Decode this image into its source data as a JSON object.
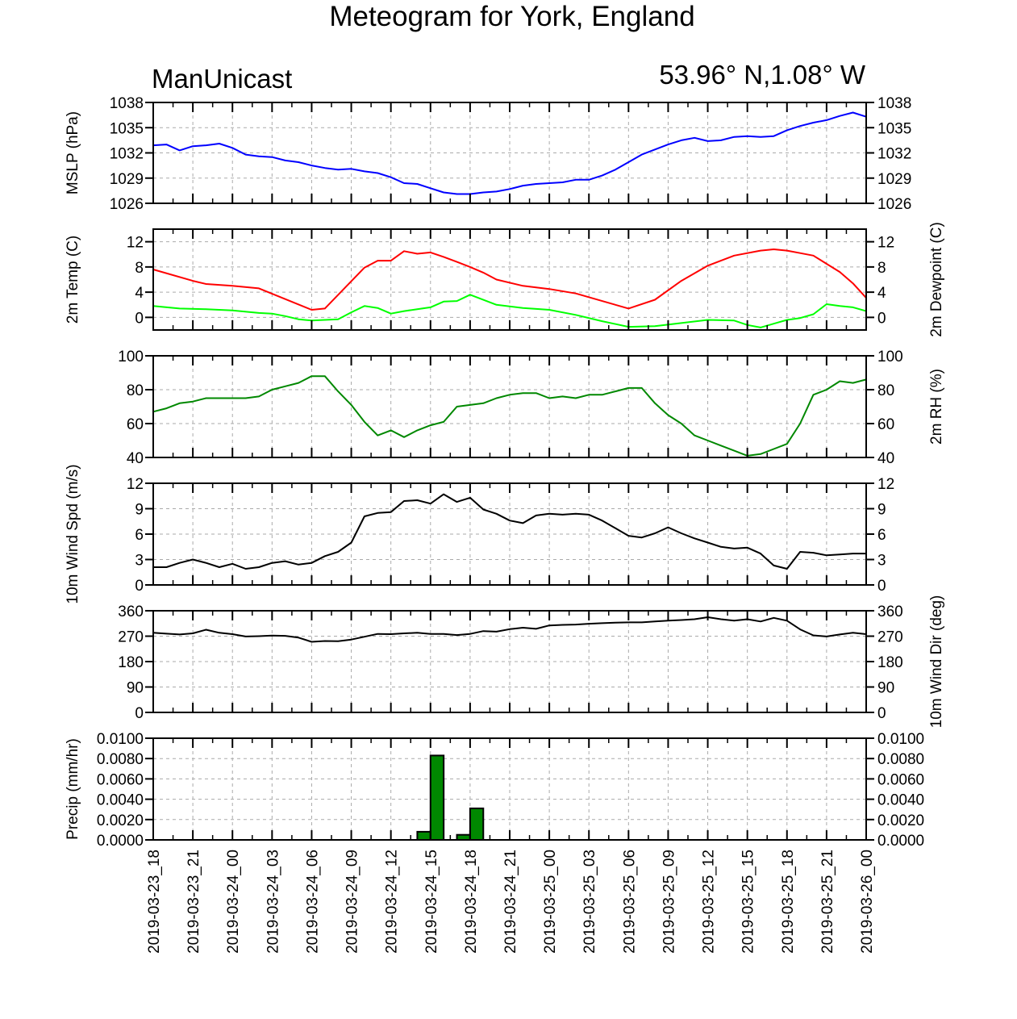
{
  "title": "Meteogram for York, England",
  "left_label": "ManUnicast",
  "right_label": "53.96° N,1.08° W",
  "colors": {
    "mslp": "#0000ff",
    "temp": "#ff0000",
    "dewpoint": "#00ff00",
    "rh": "#008800",
    "wind_spd": "#000000",
    "wind_dir": "#000000",
    "precip_fill": "#008800",
    "grid": "#aaaaaa"
  },
  "chart_data": {
    "type": "line",
    "x_ticks": [
      "2019-03-23_18",
      "2019-03-23_21",
      "2019-03-24_00",
      "2019-03-24_03",
      "2019-03-24_06",
      "2019-03-24_09",
      "2019-03-24_12",
      "2019-03-24_15",
      "2019-03-24_18",
      "2019-03-24_21",
      "2019-03-25_00",
      "2019-03-25_03",
      "2019-03-25_06",
      "2019-03-25_09",
      "2019-03-25_12",
      "2019-03-25_15",
      "2019-03-25_18",
      "2019-03-25_21",
      "2019-03-26_00"
    ],
    "x_hours_start": "2019-03-23_18",
    "x_step_hours": 1,
    "panels": [
      {
        "id": "mslp",
        "ylabel_left": "MSLP (hPa)",
        "ylabel_right": "",
        "ylim": [
          1026,
          1038
        ],
        "yticks": [
          "1026",
          "1029",
          "1032",
          "1035",
          "1038"
        ],
        "yticks_right": [
          "1026",
          "1029",
          "1032",
          "1035",
          "1038"
        ],
        "series": [
          {
            "color_key": "mslp",
            "x": [
              0,
              1,
              2,
              3,
              4,
              5,
              6,
              7,
              8,
              9,
              10,
              11,
              12,
              13,
              14,
              15,
              16,
              17,
              18,
              19,
              20,
              21,
              22,
              23,
              24,
              25,
              26,
              27,
              28,
              29,
              30,
              31,
              32,
              33,
              34,
              35,
              36,
              37,
              38,
              39,
              40,
              41,
              42,
              43,
              44,
              45,
              46,
              47,
              48,
              49,
              50,
              51,
              52,
              53,
              54
            ],
            "y": [
              1032.9,
              1033.0,
              1032.3,
              1032.8,
              1032.9,
              1033.1,
              1032.6,
              1031.8,
              1031.6,
              1031.5,
              1031.1,
              1030.9,
              1030.5,
              1030.2,
              1030.0,
              1030.1,
              1029.8,
              1029.6,
              1029.1,
              1028.4,
              1028.3,
              1027.8,
              1027.3,
              1027.1,
              1027.1,
              1027.3,
              1027.4,
              1027.7,
              1028.1,
              1028.3,
              1028.4,
              1028.5,
              1028.8,
              1028.8,
              1029.3,
              1030.0,
              1030.9,
              1031.8,
              1032.4,
              1033.0,
              1033.5,
              1033.8,
              1033.4,
              1033.5,
              1033.9,
              1034.0,
              1033.9,
              1034.0,
              1034.7,
              1035.2,
              1035.6,
              1035.9,
              1036.4,
              1036.8,
              1036.3
            ]
          }
        ]
      },
      {
        "id": "temp",
        "ylabel_left": "2m Temp (C)",
        "ylabel_right": "2m Dewpoint (C)",
        "ylim": [
          -2,
          14
        ],
        "yticks": [
          "0",
          "4",
          "8",
          "12"
        ],
        "yticks_right": [
          "0",
          "4",
          "8",
          "12"
        ],
        "series": [
          {
            "color_key": "temp",
            "x": [
              0,
              3,
              4,
              6,
              8,
              12,
              13,
              16,
              17,
              18,
              19,
              20,
              21,
              22,
              23,
              24,
              25,
              26,
              28,
              30,
              32,
              34,
              36,
              38,
              40,
              42,
              44,
              46,
              47,
              48,
              49,
              50,
              51,
              52,
              53,
              54
            ],
            "y": [
              7.6,
              5.8,
              5.3,
              5.0,
              4.6,
              1.2,
              1.4,
              7.9,
              9.0,
              9.0,
              10.5,
              10.1,
              10.3,
              9.6,
              8.8,
              8.0,
              7.1,
              6.0,
              5.0,
              4.5,
              3.8,
              2.6,
              1.4,
              2.8,
              5.8,
              8.2,
              9.8,
              10.6,
              10.8,
              10.6,
              10.2,
              9.8,
              8.5,
              7.2,
              5.4,
              3.1
            ]
          },
          {
            "color_key": "dewpoint",
            "x": [
              0,
              2,
              4,
              6,
              8,
              9,
              10,
              11,
              12,
              14,
              15,
              16,
              17,
              18,
              19,
              20,
              21,
              22,
              23,
              24,
              26,
              28,
              30,
              32,
              34,
              36,
              38,
              40,
              42,
              44,
              45,
              46,
              47,
              48,
              49,
              50,
              51,
              52,
              53,
              54
            ],
            "y": [
              1.8,
              1.4,
              1.3,
              1.1,
              0.7,
              0.6,
              0.2,
              -0.3,
              -0.5,
              -0.3,
              0.8,
              1.8,
              1.5,
              0.6,
              1.0,
              1.3,
              1.6,
              2.5,
              2.6,
              3.6,
              2.0,
              1.5,
              1.2,
              0.4,
              -0.6,
              -1.5,
              -1.4,
              -0.9,
              -0.4,
              -0.5,
              -1.2,
              -1.6,
              -1.0,
              -0.4,
              -0.1,
              0.5,
              2.1,
              1.8,
              1.6,
              1.0
            ]
          }
        ]
      },
      {
        "id": "rh",
        "ylabel_left": "",
        "ylabel_right": "2m RH (%)",
        "ylim": [
          40,
          100
        ],
        "yticks": [
          "40",
          "60",
          "80",
          "100"
        ],
        "yticks_right": [
          "40",
          "60",
          "80",
          "100"
        ],
        "series": [
          {
            "color_key": "rh",
            "x": [
              0,
              1,
              2,
              3,
              4,
              5,
              6,
              7,
              8,
              9,
              10,
              11,
              12,
              13,
              14,
              15,
              16,
              17,
              18,
              19,
              20,
              21,
              22,
              23,
              24,
              25,
              26,
              27,
              28,
              29,
              30,
              31,
              32,
              33,
              34,
              35,
              36,
              37,
              38,
              39,
              40,
              41,
              42,
              43,
              44,
              45,
              46,
              47,
              48,
              49,
              50,
              51,
              52,
              53,
              54
            ],
            "y": [
              67,
              69,
              72,
              73,
              75,
              75,
              75,
              75,
              76,
              80,
              82,
              84,
              88,
              88,
              79,
              71,
              61,
              53,
              56,
              52,
              56,
              59,
              61,
              70,
              71,
              72,
              75,
              77,
              78,
              78,
              75,
              76,
              75,
              77,
              77,
              79,
              81,
              81,
              72,
              65,
              60,
              53,
              50,
              47,
              44,
              41,
              42,
              45,
              48,
              60,
              77,
              80,
              85,
              84,
              86
            ]
          }
        ]
      },
      {
        "id": "wind_spd",
        "ylabel_left": "10m Wind Spd (m/s)",
        "ylabel_right": "",
        "ylim": [
          0,
          12
        ],
        "yticks": [
          "0",
          "3",
          "6",
          "9",
          "12"
        ],
        "yticks_right": [
          "0",
          "3",
          "6",
          "9",
          "12"
        ],
        "series": [
          {
            "color_key": "wind_spd",
            "x": [
              0,
              1,
              2,
              3,
              4,
              5,
              6,
              7,
              8,
              9,
              10,
              11,
              12,
              13,
              14,
              15,
              16,
              17,
              18,
              19,
              20,
              21,
              22,
              23,
              24,
              25,
              26,
              27,
              28,
              29,
              30,
              31,
              32,
              33,
              34,
              35,
              36,
              37,
              38,
              39,
              40,
              41,
              42,
              43,
              44,
              45,
              46,
              47,
              48,
              49,
              50,
              51,
              52,
              53,
              54
            ],
            "y": [
              2.1,
              2.1,
              2.6,
              3.0,
              2.6,
              2.1,
              2.5,
              1.9,
              2.1,
              2.6,
              2.8,
              2.4,
              2.6,
              3.4,
              3.9,
              5.0,
              8.1,
              8.5,
              8.6,
              9.9,
              10.0,
              9.6,
              10.7,
              9.8,
              10.3,
              8.9,
              8.4,
              7.6,
              7.3,
              8.2,
              8.4,
              8.3,
              8.4,
              8.3,
              7.6,
              6.7,
              5.8,
              5.6,
              6.1,
              6.8,
              6.1,
              5.5,
              5.0,
              4.5,
              4.3,
              4.4,
              3.7,
              2.3,
              1.9,
              3.9,
              3.8,
              3.5,
              3.6,
              3.7,
              3.7
            ]
          }
        ]
      },
      {
        "id": "wind_dir",
        "ylabel_left": "",
        "ylabel_right": "10m Wind Dir (deg)",
        "ylim": [
          0,
          360
        ],
        "yticks": [
          "0",
          "90",
          "180",
          "270",
          "360"
        ],
        "yticks_right": [
          "0",
          "90",
          "180",
          "270",
          "360"
        ],
        "series": [
          {
            "color_key": "wind_dir",
            "x": [
              0,
              1,
              2,
              3,
              4,
              5,
              6,
              7,
              8,
              9,
              10,
              11,
              12,
              13,
              14,
              15,
              16,
              17,
              18,
              19,
              20,
              21,
              22,
              23,
              24,
              25,
              26,
              27,
              28,
              29,
              30,
              31,
              32,
              33,
              34,
              35,
              36,
              37,
              38,
              39,
              40,
              41,
              42,
              43,
              44,
              45,
              46,
              47,
              48,
              49,
              50,
              51,
              52,
              53,
              54
            ],
            "y": [
              282,
              279,
              276,
              280,
              293,
              282,
              277,
              269,
              270,
              272,
              271,
              265,
              250,
              253,
              252,
              258,
              268,
              278,
              277,
              280,
              282,
              278,
              278,
              274,
              278,
              288,
              286,
              295,
              300,
              296,
              308,
              310,
              311,
              314,
              316,
              318,
              319,
              319,
              322,
              325,
              327,
              330,
              337,
              330,
              325,
              330,
              322,
              335,
              325,
              294,
              273,
              269,
              276,
              282,
              277
            ]
          }
        ]
      },
      {
        "id": "precip",
        "ylabel_left": "Precip (mm/hr)",
        "ylabel_right": "",
        "ylim": [
          0,
          0.01
        ],
        "yticks": [
          "0.0000",
          "0.0020",
          "0.0040",
          "0.0060",
          "0.0080",
          "0.0100"
        ],
        "yticks_right": [
          "0.0000",
          "0.0020",
          "0.0040",
          "0.0060",
          "0.0080",
          "0.0100"
        ],
        "bars": [
          {
            "x": 20.5,
            "value": 0.0008
          },
          {
            "x": 21.5,
            "value": 0.0083
          },
          {
            "x": 23.5,
            "value": 0.0005
          },
          {
            "x": 24.5,
            "value": 0.0031
          }
        ]
      }
    ],
    "grid": true
  }
}
